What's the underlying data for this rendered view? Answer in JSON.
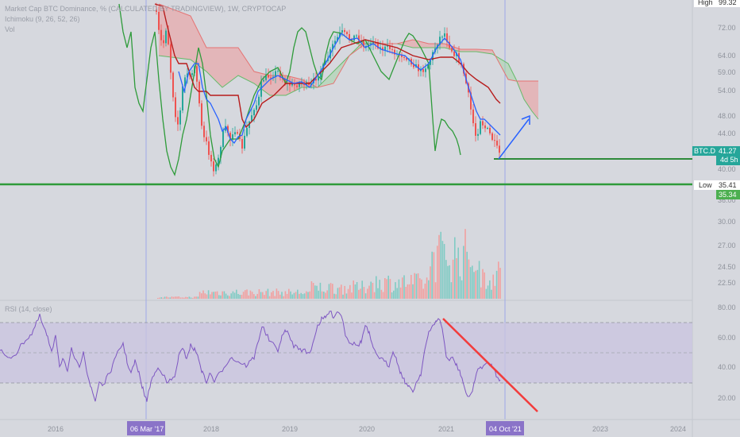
{
  "chart_data": {
    "type": "line",
    "legend": {
      "title": "Market Cap BTC Dominance, % (CALCULATED BY TRADINGVIEW), 1W, CRYPTOCAP",
      "ichimoku": "Ichimoku (9, 26, 52, 26)",
      "vol": "Vol"
    },
    "high": {
      "label": "High",
      "value": "99.32"
    },
    "low": {
      "label": "Low",
      "value": "35.41",
      "value2": "35.34"
    },
    "symbol": {
      "name": "BTC.D",
      "value": "41.27",
      "countdown": "4d 5h"
    },
    "price_ticks": [
      72.0,
      64.0,
      59.0,
      54.0,
      48.0,
      44.0,
      40.0,
      36.0
    ],
    "volume_ticks": [
      "30.00",
      "27.00",
      "24.50",
      "22.50"
    ],
    "rsi": {
      "title": "RSI (14, close)",
      "ticks": [
        80.0,
        60.0,
        40.0,
        20.0
      ],
      "upper": 70,
      "middle": 50,
      "lower": 30
    },
    "x_ticks": [
      "2016",
      "2018",
      "2019",
      "2020",
      "2021",
      "2023",
      "2024"
    ],
    "x_tick_labels_highlighted": [
      {
        "label": "06 Mar '17"
      },
      {
        "label": "04 Oct '21"
      }
    ],
    "colors": {
      "background": "#d6d8de",
      "price": "#e0464e",
      "conversion": "#2962ff",
      "base": "#b71c1c",
      "lagging": "#2e9b3a",
      "cloud_bull": "#a5d6a7",
      "cloud_bear": "#ef9a9a",
      "rsi": "#7e57c2",
      "rsi_band": "#c9c4e0",
      "support": "#2e8b3a",
      "trend_red": "#f23c3c",
      "arrow_blue": "#2962ff"
    }
  }
}
